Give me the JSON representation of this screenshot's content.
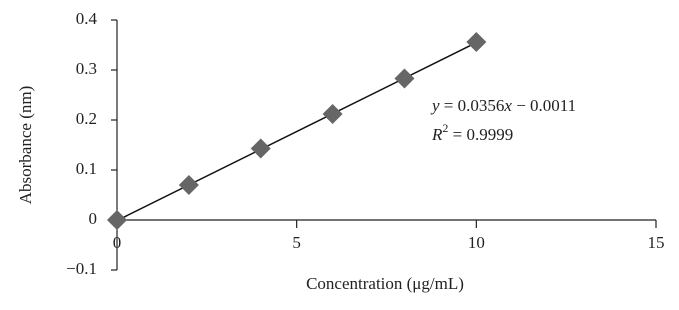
{
  "chart_data": {
    "type": "scatter",
    "x_label": "Concentration (μg/mL)",
    "y_label": "Absorbance (nm)",
    "x": [
      0,
      2,
      4,
      6,
      8,
      10
    ],
    "values": [
      0,
      0.07,
      0.143,
      0.212,
      0.283,
      0.356
    ],
    "color": "#666666",
    "trendline": {
      "slope": 0.0356,
      "intercept": -0.0011,
      "color": "#111111"
    },
    "annotation": {
      "equation": [
        "y",
        " = 0.0356",
        "x",
        " − 0.0011"
      ],
      "r_squared": [
        "R",
        "2",
        " = 0.9999"
      ]
    },
    "xlim": [
      0,
      15
    ],
    "xticks": [
      0,
      5,
      10,
      15
    ],
    "ylim": [
      -0.1,
      0.4
    ],
    "yticks": [
      {
        "value": -0.1,
        "label": "−0.1"
      },
      0,
      0.1,
      0.2,
      0.3,
      0.4
    ],
    "grid": false
  }
}
